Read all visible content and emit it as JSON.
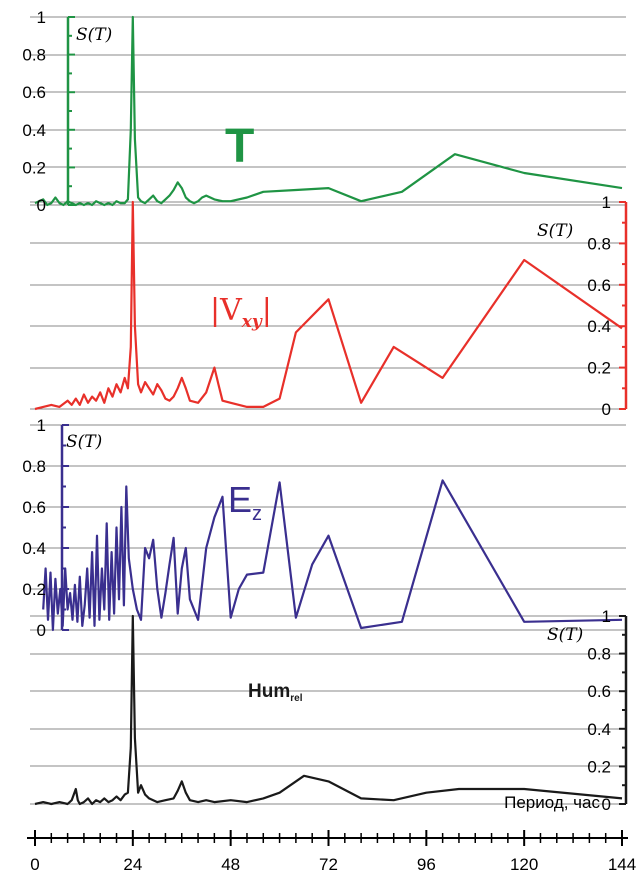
{
  "chart_data": {
    "type": "line",
    "xlabel": "Период, час",
    "xlim": [
      0,
      144
    ],
    "x_ticks": [
      "0",
      "24",
      "48",
      "72",
      "96",
      "120",
      "144"
    ],
    "y_tick_labels": [
      "0",
      "0.2",
      "0.4",
      "0.6",
      "0.8",
      "1"
    ],
    "ylim": [
      0,
      1
    ],
    "ylabel": "S(T)",
    "series": [
      {
        "name": "T",
        "color": "#1f9444",
        "axis_side": "left",
        "x": [
          0,
          2,
          3,
          4,
          5,
          6,
          7,
          8,
          9,
          10,
          11,
          12,
          13,
          14,
          15,
          16,
          17,
          18,
          19,
          20,
          21,
          22,
          22.8,
          23.5,
          24,
          24.5,
          25.3,
          26,
          27,
          28,
          29,
          30,
          31,
          32,
          33,
          34,
          35,
          36,
          37,
          38,
          39,
          40,
          41,
          42,
          44,
          46,
          48,
          52,
          56,
          64,
          72,
          80,
          90,
          103,
          120,
          144
        ],
        "values": [
          0.01,
          0.03,
          0.0,
          0.01,
          0.04,
          0.01,
          0.0,
          0.02,
          0.01,
          0.0,
          0.01,
          0.0,
          0.01,
          0.0,
          0.02,
          0.01,
          0.0,
          0.01,
          0.0,
          0.02,
          0.01,
          0.01,
          0.03,
          0.4,
          1.0,
          0.35,
          0.04,
          0.02,
          0.01,
          0.03,
          0.05,
          0.02,
          0.01,
          0.03,
          0.05,
          0.08,
          0.12,
          0.09,
          0.04,
          0.02,
          0.01,
          0.02,
          0.04,
          0.05,
          0.03,
          0.02,
          0.02,
          0.04,
          0.07,
          0.08,
          0.09,
          0.02,
          0.07,
          0.27,
          0.17,
          0.09
        ]
      },
      {
        "name": "|V",
        "name_sub": "xy",
        "name_suffix": "|",
        "color": "#e8302a",
        "axis_side": "right",
        "x": [
          0,
          2,
          4,
          6,
          8,
          9,
          10,
          11,
          12,
          13,
          14,
          15,
          16,
          17,
          18,
          19,
          20,
          21,
          22,
          22.8,
          23.5,
          24,
          24.5,
          25.3,
          26,
          27,
          28,
          29,
          30,
          31,
          32,
          33,
          34,
          35,
          36,
          37,
          38,
          40,
          42,
          44,
          45,
          46,
          48,
          52,
          56,
          60,
          64,
          72,
          80,
          88,
          100,
          120,
          144
        ],
        "values": [
          0.0,
          0.01,
          0.02,
          0.01,
          0.04,
          0.02,
          0.05,
          0.02,
          0.07,
          0.03,
          0.06,
          0.04,
          0.08,
          0.03,
          0.1,
          0.06,
          0.12,
          0.08,
          0.15,
          0.1,
          0.3,
          1.0,
          0.4,
          0.12,
          0.08,
          0.13,
          0.1,
          0.07,
          0.12,
          0.09,
          0.05,
          0.04,
          0.06,
          0.1,
          0.15,
          0.1,
          0.04,
          0.03,
          0.08,
          0.2,
          0.12,
          0.04,
          0.03,
          0.01,
          0.01,
          0.05,
          0.37,
          0.53,
          0.03,
          0.3,
          0.15,
          0.72,
          0.39
        ]
      },
      {
        "name": "E",
        "name_sub": "z",
        "color": "#3a2f8f",
        "axis_side": "left",
        "x": [
          2,
          2.6,
          3.2,
          3.8,
          4.4,
          5,
          5.6,
          6.2,
          6.8,
          7.4,
          8,
          8.6,
          9.2,
          9.8,
          10.4,
          11,
          11.6,
          12.2,
          12.8,
          13.4,
          14,
          14.6,
          15.2,
          15.8,
          16.4,
          17,
          17.6,
          18.2,
          18.8,
          19.4,
          20,
          20.6,
          21.2,
          21.8,
          22.4,
          23,
          24,
          25,
          26,
          27,
          28,
          29,
          30,
          31,
          32,
          33,
          34,
          35,
          36,
          37,
          38,
          40,
          42,
          44,
          46,
          48,
          50,
          52,
          56,
          60,
          64,
          68,
          72,
          80,
          90,
          100,
          120,
          144
        ],
        "values": [
          0.1,
          0.3,
          0.05,
          0.28,
          0.0,
          0.25,
          0.08,
          0.2,
          0.02,
          0.3,
          0.1,
          0.18,
          0.05,
          0.22,
          0.04,
          0.26,
          0.02,
          0.12,
          0.3,
          0.06,
          0.38,
          0.02,
          0.46,
          0.05,
          0.3,
          0.1,
          0.52,
          0.05,
          0.38,
          0.08,
          0.5,
          0.15,
          0.6,
          0.12,
          0.7,
          0.35,
          0.2,
          0.1,
          0.05,
          0.4,
          0.35,
          0.44,
          0.2,
          0.06,
          0.18,
          0.32,
          0.45,
          0.08,
          0.3,
          0.4,
          0.15,
          0.05,
          0.4,
          0.55,
          0.65,
          0.06,
          0.2,
          0.27,
          0.28,
          0.72,
          0.06,
          0.32,
          0.46,
          0.01,
          0.04,
          0.73,
          0.04,
          0.05
        ]
      },
      {
        "name": "Hum",
        "name_sub": "rel",
        "color": "#1a1a1a",
        "axis_side": "right",
        "x": [
          0,
          2,
          4,
          6,
          8,
          9,
          10,
          10.5,
          11,
          12,
          13,
          14,
          15,
          16,
          17,
          18,
          19,
          20,
          21,
          22,
          22.8,
          23.5,
          24,
          24.5,
          25.3,
          26,
          27,
          28,
          29,
          30,
          32,
          34,
          35,
          36,
          37,
          38,
          40,
          42,
          44,
          48,
          52,
          56,
          60,
          66,
          72,
          80,
          88,
          96,
          104,
          120,
          144
        ],
        "values": [
          0.0,
          0.01,
          0.0,
          0.01,
          0.0,
          0.02,
          0.08,
          0.02,
          0.0,
          0.01,
          0.03,
          0.0,
          0.02,
          0.01,
          0.03,
          0.01,
          0.02,
          0.04,
          0.02,
          0.05,
          0.06,
          0.3,
          1.0,
          0.35,
          0.06,
          0.1,
          0.05,
          0.03,
          0.02,
          0.01,
          0.02,
          0.03,
          0.07,
          0.12,
          0.06,
          0.02,
          0.01,
          0.02,
          0.01,
          0.02,
          0.01,
          0.03,
          0.06,
          0.15,
          0.12,
          0.03,
          0.02,
          0.06,
          0.08,
          0.08,
          0.03
        ]
      }
    ]
  }
}
